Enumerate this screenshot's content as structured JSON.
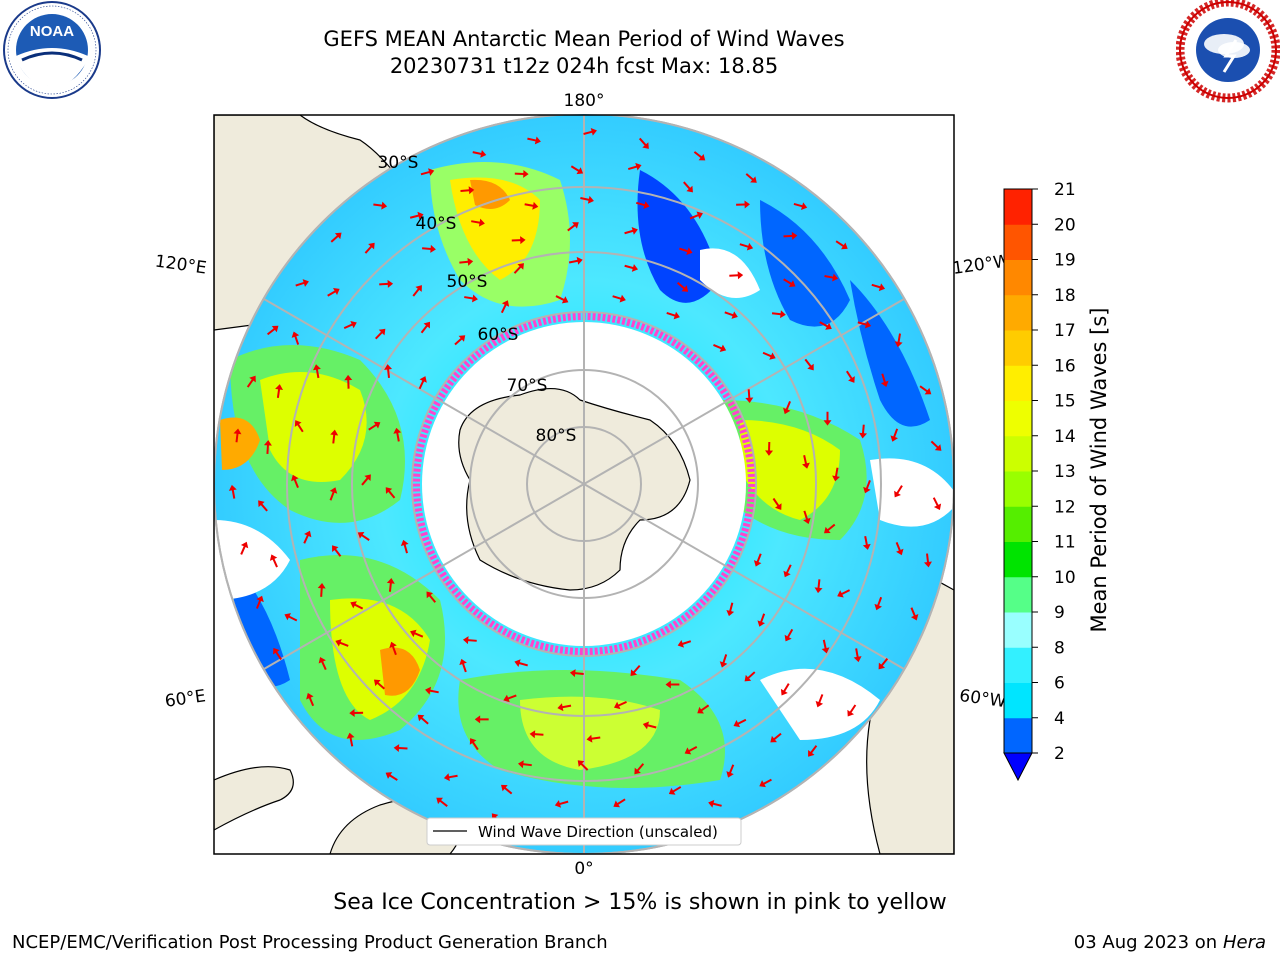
{
  "header": {
    "title_line1": "GEFS MEAN Antarctic Mean Period of Wind Waves",
    "title_line2": "20230731 t12z 024h fcst   Max: 18.85"
  },
  "logos": {
    "left": {
      "name": "noaa-logo",
      "text": "NOAA",
      "ring_text": "NATIONAL OCEANIC AND ATMOSPHERIC ADMINISTRATION · U.S. DEPARTMENT OF COMMERCE"
    },
    "right": {
      "name": "nws-logo",
      "ring_text": "NATIONAL WEATHER SERVICE"
    }
  },
  "map": {
    "projection": "south-polar stereographic",
    "longitude_labels": {
      "top": "180°",
      "bottom": "0°",
      "upper_left": "120°E",
      "upper_right": "120°W",
      "lower_left": "60°E",
      "lower_right": "60°W"
    },
    "latitude_labels": [
      "30°S",
      "40°S",
      "50°S",
      "60°S",
      "70°S",
      "80°S"
    ],
    "legend_label": "Wind Wave Direction (unscaled)",
    "colors": {
      "land": "#efebdc",
      "ocean_low": "#00e5ff",
      "ocean_mid": "#00e400",
      "ocean_high": "#ffff00",
      "ice_edge": "#ff44cc",
      "arrow": "#ee0000"
    }
  },
  "colorbar": {
    "label": "Mean Period of Wind Waves [s]",
    "ticks": [
      "2",
      "4",
      "6",
      "8",
      "9",
      "10",
      "11",
      "12",
      "13",
      "14",
      "15",
      "16",
      "17",
      "18",
      "19",
      "20",
      "21"
    ],
    "colors": [
      "#0000ff",
      "#0066ff",
      "#00e5ff",
      "#33f0ff",
      "#99ffff",
      "#55ff88",
      "#00e400",
      "#55ee00",
      "#99ff00",
      "#ccff00",
      "#eeff00",
      "#ffee00",
      "#ffcc00",
      "#ffaa00",
      "#ff8800",
      "#ff5500",
      "#ff2200",
      "#ff0000"
    ],
    "extend": "min"
  },
  "footer": {
    "ice_note": "Sea Ice Concentration > 15% is shown in pink to yellow",
    "producer": "NCEP/EMC/Verification Post Processing Product Generation Branch",
    "date": "03 Aug 2023 on",
    "host": "Hera"
  }
}
